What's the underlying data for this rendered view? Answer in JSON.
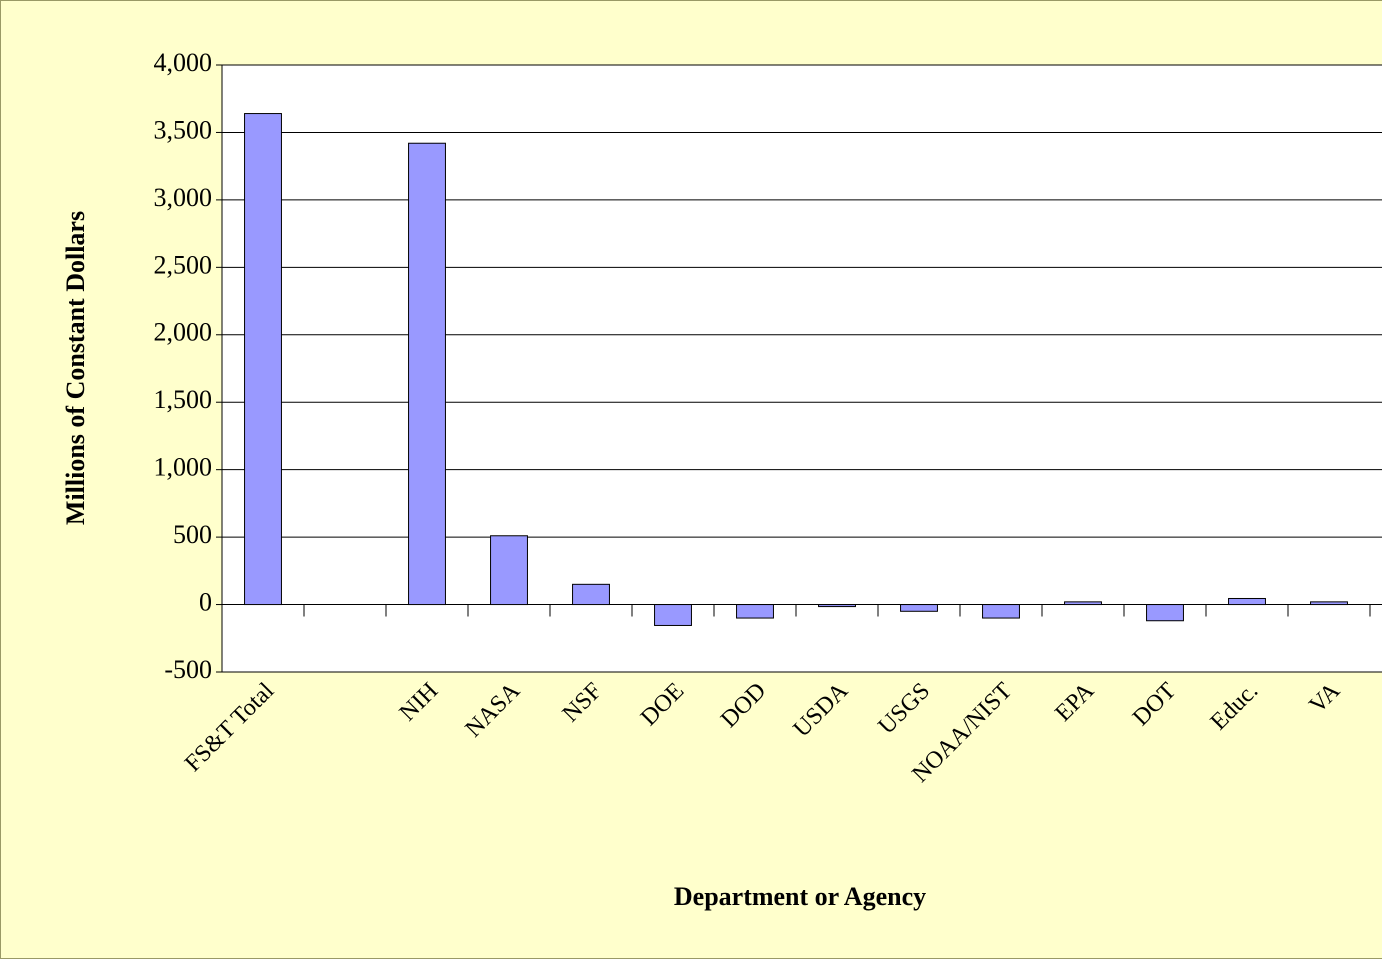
{
  "chart_data": {
    "type": "bar",
    "x_label": "Department or Agency",
    "y_label": "Millions of Constant Dollars",
    "categories": [
      "FS&T Total",
      null,
      "NIH",
      "NASA",
      "NSF",
      "DOE",
      "DOD",
      "USDA",
      "USGS",
      "NOAA/NIST",
      "EPA",
      "DOT",
      "Educ.",
      "VA"
    ],
    "values": [
      3640,
      null,
      3420,
      510,
      150,
      -155,
      -100,
      -15,
      -50,
      -100,
      20,
      -120,
      45,
      20
    ],
    "color": "#9999ff",
    "ylim": [
      -500,
      4000
    ],
    "yticks": [
      -500,
      0,
      500,
      {
        "value": 1000,
        "label": "1,000"
      },
      {
        "value": 1500,
        "label": "1,500"
      },
      {
        "value": 2000,
        "label": "2,000"
      },
      {
        "value": 2500,
        "label": "2,500"
      },
      {
        "value": 3000,
        "label": "3,000"
      },
      {
        "value": 3500,
        "label": "3,500"
      },
      {
        "value": 4000,
        "label": "4,000"
      }
    ],
    "grid": true
  }
}
